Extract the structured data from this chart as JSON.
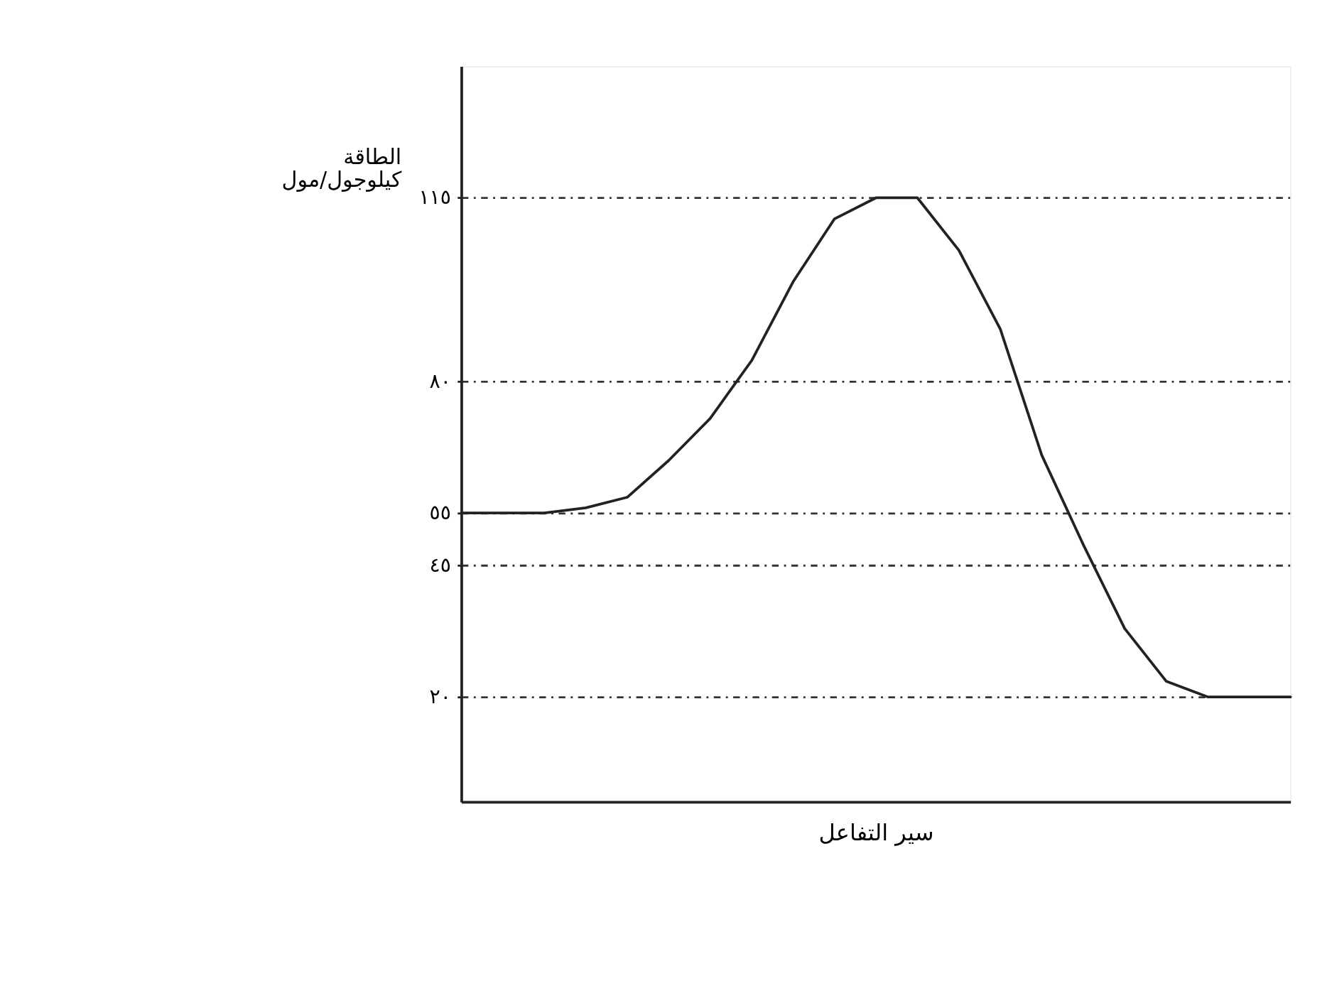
{
  "chart_data": {
    "type": "line",
    "xlabel": "سير التفاعل",
    "ylabel": "الطاقة كيلوجول/مول",
    "categories": [
      null,
      null,
      null,
      null,
      null,
      null,
      null,
      null,
      null,
      null,
      null,
      null,
      null,
      null,
      null,
      null,
      null,
      null,
      null,
      null,
      null
    ],
    "series": [
      {
        "color": "#222222",
        "values": [
          55,
          55,
          55,
          56,
          58,
          65,
          73,
          84,
          99,
          111,
          115,
          115,
          105,
          90,
          66,
          49,
          33,
          23,
          20,
          20,
          20
        ]
      }
    ],
    "ylim": [
      0,
      140
    ],
    "yticks": [
      {
        "value": 20,
        "label": "٢٠"
      },
      {
        "value": 45,
        "label": "٤٥"
      },
      {
        "value": 55,
        "label": "٥٥"
      },
      {
        "value": 80,
        "label": "٨٠"
      },
      {
        "value": 115,
        "label": "١١٥"
      }
    ],
    "grid": "y",
    "marker": "none",
    "line_style": "solid",
    "tick_labels": "y"
  }
}
